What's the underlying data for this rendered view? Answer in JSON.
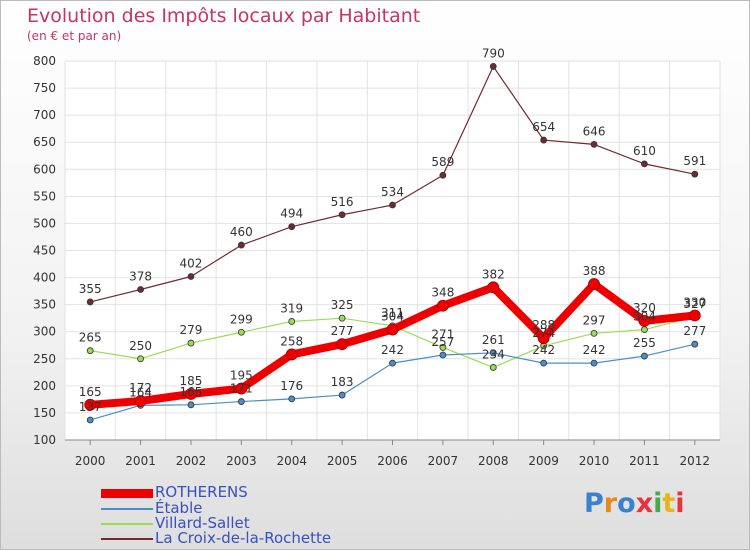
{
  "title": "Evolution des Impôts locaux par Habitant",
  "subtitle": "(en € et par an)",
  "logo_text": "Proxiti",
  "chart_data": {
    "type": "line",
    "x": [
      "2000",
      "2001",
      "2002",
      "2003",
      "2004",
      "2005",
      "2006",
      "2007",
      "2008",
      "2009",
      "2010",
      "2011",
      "2012"
    ],
    "ylim": [
      100,
      800
    ],
    "yticks": [
      100,
      150,
      200,
      250,
      300,
      350,
      400,
      450,
      500,
      550,
      600,
      650,
      700,
      750,
      800
    ],
    "grid": true,
    "legend_position": "bottom-left",
    "series": [
      {
        "name": "ROTHERENS",
        "color": "#ee0000",
        "values": [
          165,
          172,
          185,
          195,
          258,
          277,
          304,
          348,
          382,
          288,
          388,
          320,
          330
        ],
        "labels": [
          "165",
          "172",
          "185",
          "195",
          "258",
          "277",
          "304",
          "348",
          "382",
          "288",
          "388",
          "320",
          "330"
        ]
      },
      {
        "name": "Étable",
        "color": "#4b8fc6",
        "values": [
          137,
          164,
          165,
          171,
          176,
          183,
          242,
          257,
          261,
          242,
          242,
          255,
          277
        ],
        "labels": [
          "137",
          "164",
          "165",
          "171",
          "176",
          "183",
          "242",
          "257",
          "261",
          "242",
          "242",
          "255",
          "277"
        ]
      },
      {
        "name": "Villard-Sallet",
        "color": "#99dd55",
        "values": [
          265,
          250,
          279,
          299,
          319,
          325,
          311,
          271,
          234,
          274,
          297,
          304,
          327
        ],
        "labels": [
          "265",
          "250",
          "279",
          "299",
          "319",
          "325",
          "311",
          "271",
          "234",
          "274",
          "297",
          "304",
          "327"
        ]
      },
      {
        "name": "La Croix-de-la-Rochette",
        "color": "#702a35",
        "values": [
          355,
          378,
          402,
          460,
          494,
          516,
          534,
          589,
          790,
          654,
          646,
          610,
          591
        ],
        "labels": [
          "355",
          "378",
          "402",
          "460",
          "494",
          "516",
          "534",
          "589",
          "790",
          "654",
          "646",
          "610",
          "591"
        ]
      }
    ]
  }
}
